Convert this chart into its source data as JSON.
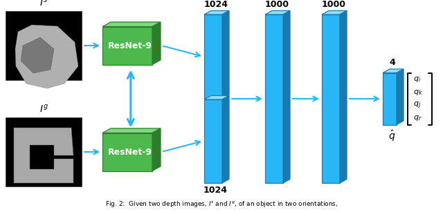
{
  "fig_width": 6.4,
  "fig_height": 3.07,
  "dpi": 100,
  "bg_color": "#ffffff",
  "green_face": "#4db84d",
  "green_top": "#80d880",
  "green_side": "#2d7d2d",
  "blue_face": "#29b6f6",
  "blue_top": "#90e0ff",
  "blue_side": "#1a7ab0",
  "arrow_color": "#29b6f6",
  "resnet_label": "ResNet-9",
  "output_components": [
    "q_i",
    "q_k",
    "q_j",
    "q_r"
  ],
  "caption": "Fig. 2:  Given two depth images, $I^s$ and $I^g$, of an object in two orientations,"
}
